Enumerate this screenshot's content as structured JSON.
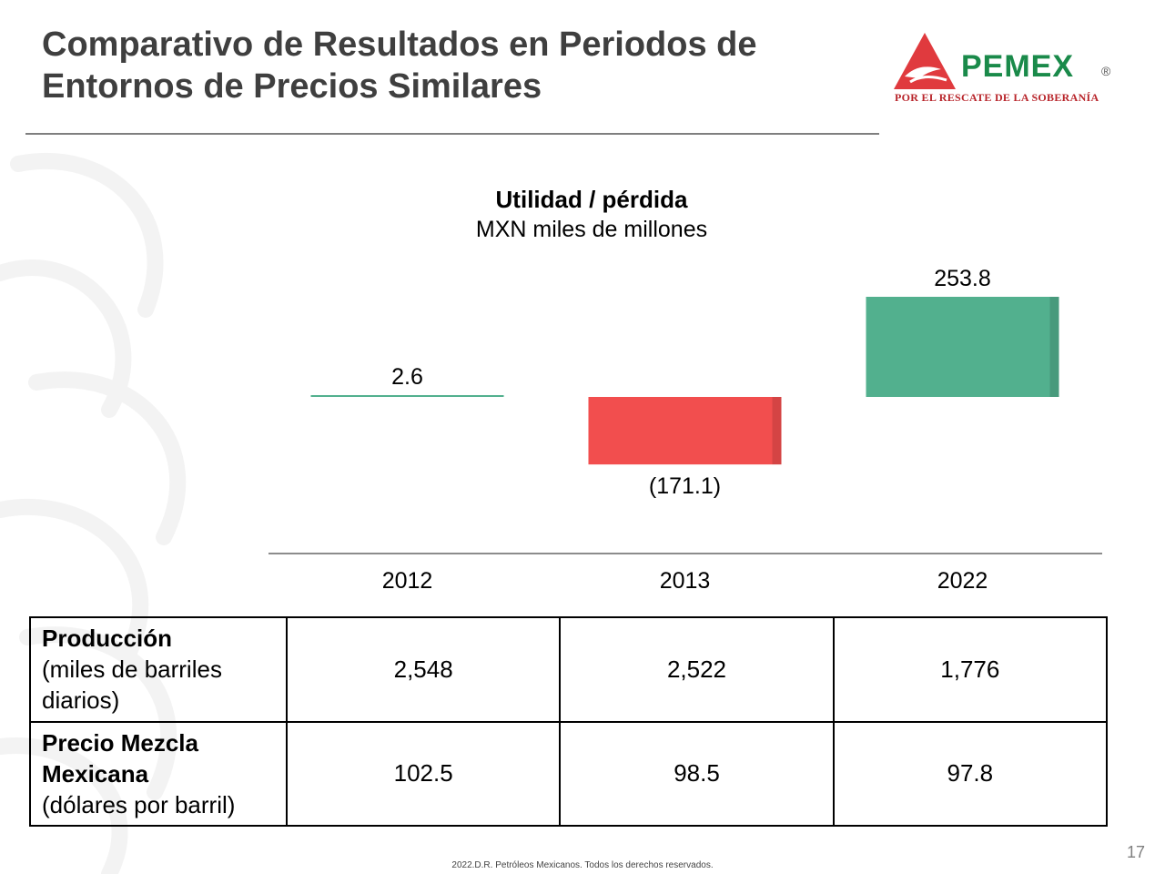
{
  "header": {
    "title": "Comparativo de Resultados en Periodos de Entornos de Precios Similares",
    "logo_word": "PEMEX",
    "logo_registered": "®",
    "logo_tagline": "POR EL RESCATE DE LA SOBERANÍA"
  },
  "colors": {
    "positive": "#52b08e",
    "negative": "#f24e4e",
    "title": "#3f3f3f",
    "brand_green": "#1a8a4a",
    "brand_red": "#b8242a"
  },
  "chart_data": {
    "type": "bar",
    "title": "Utilidad / pérdida",
    "subtitle": "MXN miles de millones",
    "categories": [
      "2012",
      "2013",
      "2022"
    ],
    "values": [
      2.6,
      -171.1,
      253.8
    ],
    "value_labels": [
      "2.6",
      "(171.1)",
      "253.8"
    ],
    "ylim": [
      -171.1,
      253.8
    ],
    "grid": false
  },
  "table": {
    "rows": [
      {
        "label_bold": "Producción",
        "label_rest": "(miles de barriles diarios)",
        "values": [
          "2,548",
          "2,522",
          "1,776"
        ]
      },
      {
        "label_bold": "Precio Mezcla Mexicana",
        "label_rest": "(dólares por barril)",
        "values": [
          "102.5",
          "98.5",
          "97.8"
        ]
      }
    ]
  },
  "footer": {
    "copyright": "2022.D.R. Petróleos Mexicanos. Todos los derechos reservados.",
    "page_number": "17"
  }
}
